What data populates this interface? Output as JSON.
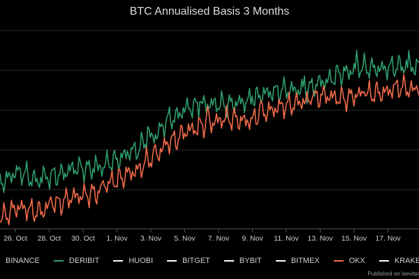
{
  "chart_data": {
    "type": "line",
    "title": "BTC Annualised Basis 3 Months",
    "xlabel": "",
    "ylabel": "",
    "x_ticks": [
      "26. Oct",
      "28. Oct",
      "30. Oct",
      "1. Nov",
      "3. Nov",
      "5. Nov",
      "7. Nov",
      "9. Nov",
      "11. Nov",
      "13. Nov",
      "15. Nov",
      "17. Nov"
    ],
    "legend_position": "bottom",
    "grid": true,
    "series": [
      {
        "name": "BINANCE",
        "color": "#ffffff",
        "values": []
      },
      {
        "name": "DERIBIT",
        "color": "#2e9e6e",
        "values": [
          0.13,
          0.2,
          0.14,
          0.18,
          0.23,
          0.22,
          0.28,
          0.35,
          0.45,
          0.58,
          0.66,
          0.68,
          0.68,
          0.7,
          0.76,
          0.78,
          0.78,
          0.84,
          0.9,
          0.94,
          0.93,
          0.95,
          0.94
        ]
      },
      {
        "name": "HUOBI",
        "color": "#ffffff",
        "values": []
      },
      {
        "name": "BITGET",
        "color": "#ffffff",
        "values": []
      },
      {
        "name": "BYBIT",
        "color": "#ffffff",
        "values": []
      },
      {
        "name": "BITMEX",
        "color": "#ffffff",
        "values": []
      },
      {
        "name": "OKX",
        "color": "#f26b4a",
        "values": [
          -0.12,
          -0.05,
          -0.08,
          -0.02,
          0.03,
          0.05,
          0.14,
          0.2,
          0.3,
          0.42,
          0.5,
          0.55,
          0.58,
          0.56,
          0.63,
          0.67,
          0.7,
          0.74,
          0.72,
          0.75,
          0.76,
          0.8,
          0.77
        ]
      },
      {
        "name": "KRAKEN",
        "color": "#ffffff",
        "values": []
      }
    ]
  },
  "legend_items": [
    {
      "label": "BINANCE",
      "color": "#ffffff"
    },
    {
      "label": "DERIBIT",
      "color": "#2e9e6e"
    },
    {
      "label": "HUOBI",
      "color": "#ffffff"
    },
    {
      "label": "BITGET",
      "color": "#ffffff"
    },
    {
      "label": "BYBIT",
      "color": "#ffffff"
    },
    {
      "label": "BITMEX",
      "color": "#ffffff"
    },
    {
      "label": "OKX",
      "color": "#f26b4a"
    },
    {
      "label": "KRAKEN",
      "color": "#ffffff"
    }
  ],
  "footer": "Published on laevitas"
}
